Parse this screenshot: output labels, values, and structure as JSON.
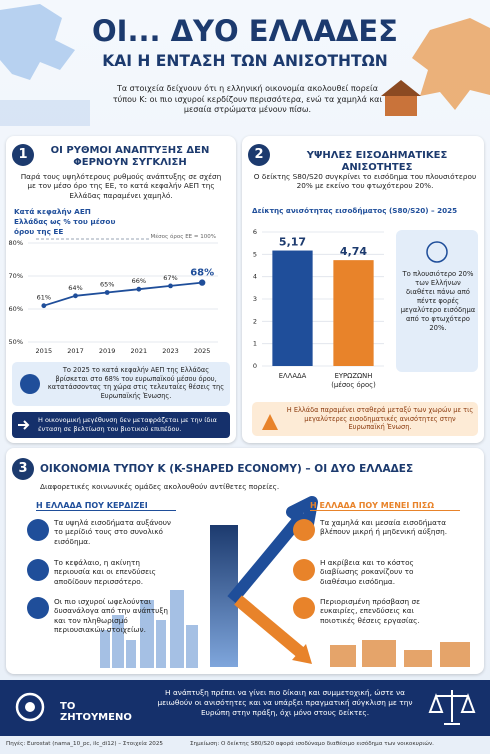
{
  "header": {
    "title": "ΟΙ... ΔΥΟ ΕΛΛΑΔΕΣ",
    "subtitle": "ΚΑΙ Η ΕΝΤΑΣΗ ΤΩΝ ΑΝΙΣΟΤΗΤΩΝ",
    "intro": "Τα στοιχεία δείχνουν ότι η ελληνική οικονομία ακολουθεί πορεία τύπου Κ: οι πιο ισχυροί κερδίζουν περισσότερα, ενώ τα χαμηλά και μεσαία στρώματα μένουν πίσω."
  },
  "section1": {
    "number": "1",
    "title": "ΟΙ ΡΥΘΜΟΙ ΑΝΑΠΤΥΞΗΣ ΔΕΝ ΦΕΡΝΟΥΝ ΣΥΓΚΛΙΣΗ",
    "text": "Παρά τους υψηλότερους ρυθμούς ανάπτυξης σε σχέση με τον μέσο όρο της ΕΕ, το κατά κεφαλήν ΑΕΠ της Ελλάδας παραμένει χαμηλό.",
    "callout": "Το 2025 το κατά κεφαλήν ΑΕΠ της Ελλάδας βρίσκεται στο 68% του ευρωπαϊκού μέσου όρου, κατατάσσοντας τη χώρα στις τελευταίες θέσεις της Ευρωπαϊκής Ένωσης.",
    "note": "Η οικονομική μεγέθυνση δεν μεταφράζεται με την ίδια ένταση σε βελτίωση του βιοτικού επιπέδου."
  },
  "section2": {
    "number": "2",
    "title": "ΥΨΗΛΕΣ ΕΙΣΟΔΗΜΑΤΙΚΕΣ ΑΝΙΣΟΤΗΤΕΣ",
    "text": "Ο δείκτης S80/S20 συγκρίνει το εισόδημα του πλουσιότερου 20% με εκείνο του φτωχότερου 20%.",
    "side_note": "Το πλουσιότερο 20% των Ελλήνων διαθέτει πάνω από πέντε φορές μεγαλύτερο εισόδημα από το φτωχότερο 20%.",
    "warning": "Η Ελλάδα παραμένει σταθερά μεταξύ των χωρών με τις μεγαλύτερες εισοδηματικές ανισότητες στην Ευρωπαϊκή Ένωση."
  },
  "chart_data": [
    {
      "type": "line",
      "title": "Κατά κεφαλήν ΑΕΠ Ελλάδας ως % του μέσου όρου της ΕΕ",
      "annotation": "Μέσος όρος ΕΕ = 100%",
      "categories": [
        "2015",
        "2017",
        "2019",
        "2021",
        "2023",
        "2025"
      ],
      "values": [
        61,
        64,
        65,
        66,
        67,
        68
      ],
      "value_labels": [
        "61%",
        "64%",
        "65%",
        "66%",
        "67%",
        "68%"
      ],
      "color": "#1f4e9a",
      "ylim": [
        50,
        80
      ],
      "yticks": [
        {
          "value": 50,
          "label": "50%"
        },
        {
          "value": 60,
          "label": "60%"
        },
        {
          "value": 70,
          "label": "70%"
        },
        {
          "value": 80,
          "label": "80%"
        }
      ],
      "grid": true
    },
    {
      "type": "bar",
      "title": "Δείκτης ανισότητας εισοδήματος (S80/S20) – 2025",
      "categories": [
        "ΕΛΛΑΔΑ",
        "ΕΥΡΩΖΩΝΗ (μέσος όρος)"
      ],
      "values": [
        5.17,
        4.74
      ],
      "value_labels": [
        "5,17",
        "4,74"
      ],
      "colors": [
        "#1f4e9a",
        "#e8832a"
      ],
      "ylim": [
        0,
        6
      ],
      "yticks": [
        0,
        1,
        2,
        3,
        4,
        5,
        6
      ],
      "grid": true
    }
  ],
  "section3": {
    "number": "3",
    "title": "ΟΙΚΟΝΟΜΙΑ ΤΥΠΟΥ Κ (K-SHAPED ECONOMY) – ΟΙ ΔΥΟ ΕΛΛΑΔΕΣ",
    "subtitle": "Διαφορετικές κοινωνικές ομάδες ακολουθούν αντίθετες πορείες.",
    "left": {
      "title": "Η ΕΛΛΑΔΑ ΠΟΥ ΚΕΡΔΙΖΕΙ",
      "items": [
        "Τα υψηλά εισοδήματα αυξάνουν το μερίδιό τους στο συνολικό εισόδημα.",
        "Το κεφάλαιο, η ακίνητη περιουσία και οι επενδύσεις αποδίδουν περισσότερο.",
        "Οι πιο ισχυροί ωφελούνται δυσανάλογα από την ανάπτυξη και τον πληθωρισμό περιουσιακών στοιχείων."
      ]
    },
    "right": {
      "title": "Η ΕΛΛΑΔΑ ΠΟΥ ΜΕΝΕΙ ΠΙΣΩ",
      "items": [
        "Τα χαμηλά και μεσαία εισοδήματα βλέπουν μικρή ή μηδενική αύξηση.",
        "Η ακρίβεια και το κόστος διαβίωσης ροκανίζουν το διαθέσιμο εισόδημα.",
        "Περιορισμένη πρόσβαση σε ευκαιρίες, επενδύσεις και ποιοτικές θέσεις εργασίας."
      ]
    }
  },
  "goal": {
    "title": "ΤΟ ΖΗΤΟΥΜΕΝΟ",
    "text": "Η ανάπτυξη πρέπει να γίνει πιο δίκαιη και συμμετοχική, ώστε να μειωθούν οι ανισότητες και να υπάρξει πραγματική σύγκλιση με την Ευρώπη στην πράξη, όχι μόνο στους δείκτες."
  },
  "footer": {
    "sources": "Πηγές: Eurostat (nama_10_pc, ilc_di12) – Στοιχεία 2025",
    "note": "Σημείωση: Ο δείκτης S80/S20 αφορά ισοδύναμο διαθέσιμο εισόδημα των νοικοκυριών."
  }
}
